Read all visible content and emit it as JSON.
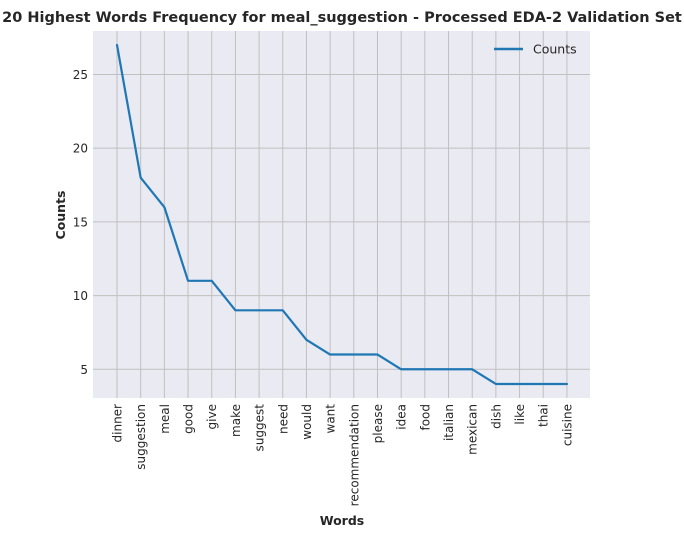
{
  "chart_data": {
    "type": "line",
    "title": "20 Highest Words Frequency for meal_suggestion - Processed EDA-2 Validation Set",
    "xlabel": "Words",
    "ylabel": "Counts",
    "categories": [
      "dinner",
      "suggestion",
      "meal",
      "good",
      "give",
      "make",
      "suggest",
      "need",
      "would",
      "want",
      "recommendation",
      "please",
      "idea",
      "food",
      "italian",
      "mexican",
      "dish",
      "like",
      "thai",
      "cuisine"
    ],
    "series": [
      {
        "name": "Counts",
        "values": [
          27,
          18,
          16,
          11,
          11,
          9,
          9,
          9,
          7,
          6,
          6,
          6,
          5,
          5,
          5,
          5,
          4,
          4,
          4,
          4
        ]
      }
    ],
    "yticks": [
      5,
      10,
      15,
      20,
      25
    ],
    "ylim": [
      3.05,
      27.95
    ],
    "grid": true,
    "legend_position": "top-right",
    "colors": {
      "line": "#1f77b4",
      "plot_background": "#eaeaf2",
      "grid": "#c0c0c0"
    }
  }
}
